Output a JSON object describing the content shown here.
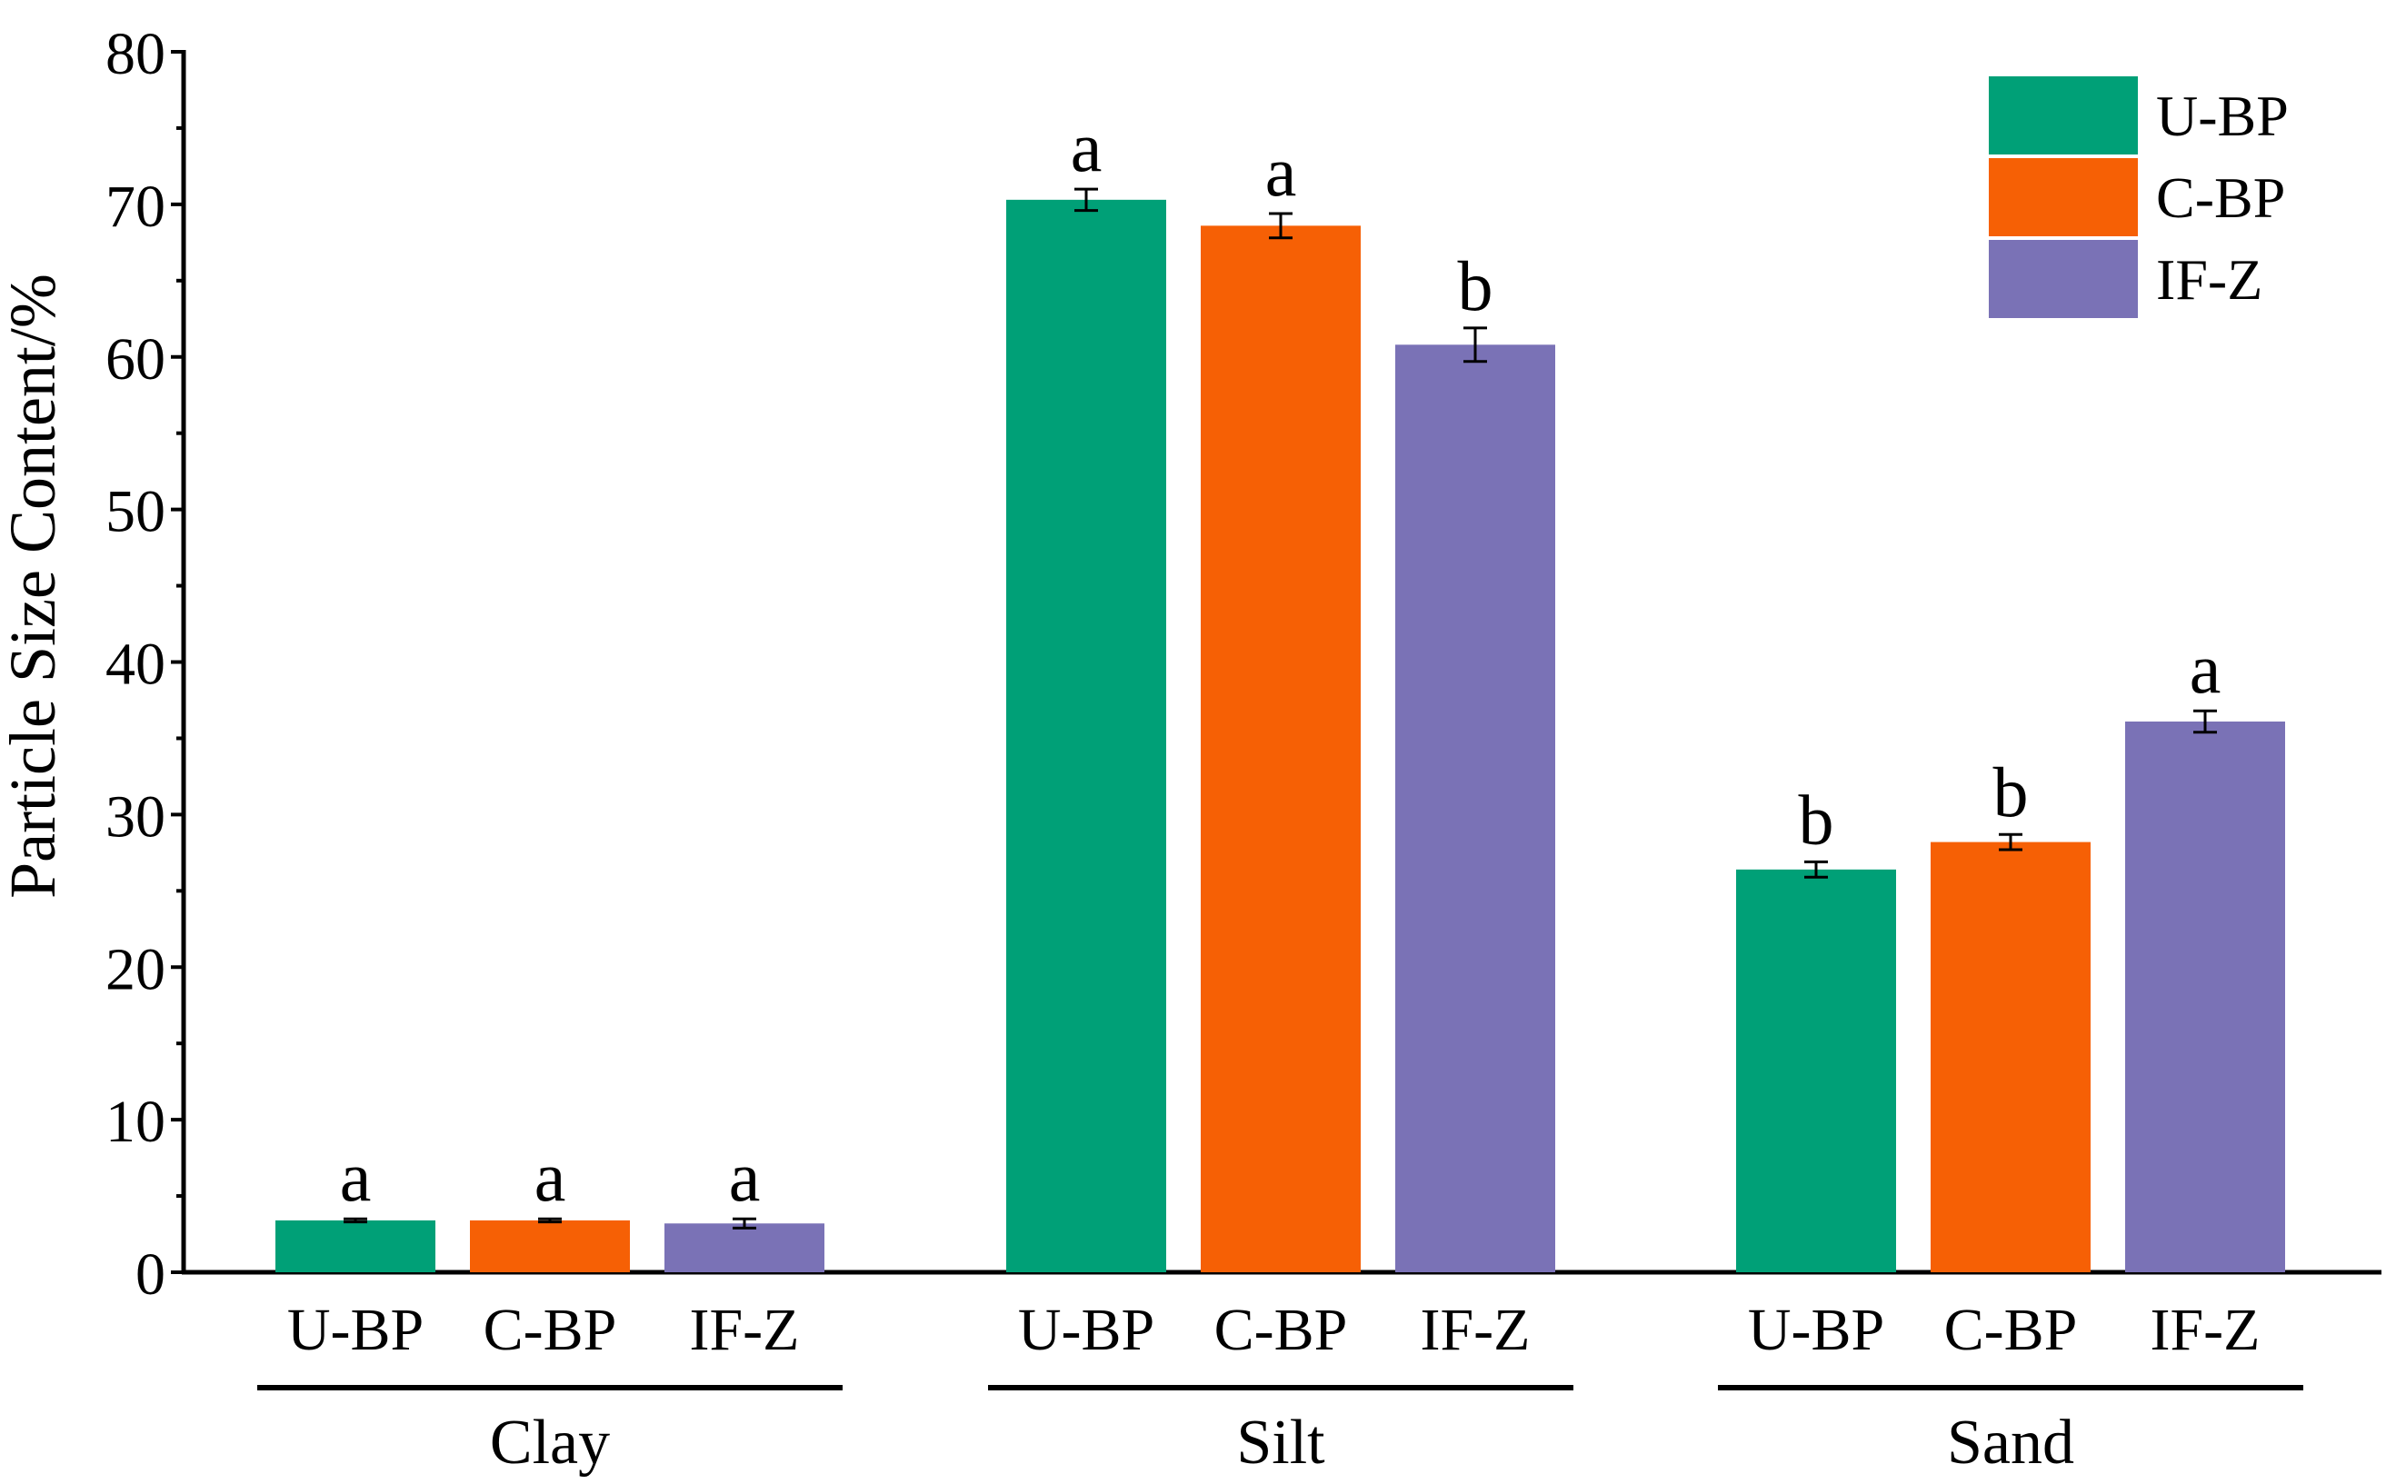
{
  "chart_data": {
    "type": "bar",
    "ylabel": "Particle Size Content/%",
    "ylim": [
      0,
      80
    ],
    "y_ticks": [
      "0",
      "10",
      "20",
      "30",
      "40",
      "50",
      "60",
      "70",
      "80"
    ],
    "groups": [
      {
        "name": "Clay",
        "categories": [
          "U-BP",
          "C-BP",
          "IF-Z"
        ],
        "values": [
          3.4,
          3.4,
          3.2
        ],
        "errors": [
          0.1,
          0.1,
          0.3
        ],
        "letters": [
          "a",
          "a",
          "a"
        ]
      },
      {
        "name": "Silt",
        "categories": [
          "U-BP",
          "C-BP",
          "IF-Z"
        ],
        "values": [
          70.3,
          68.6,
          60.8
        ],
        "errors": [
          0.7,
          0.8,
          1.1
        ],
        "letters": [
          "a",
          "a",
          "b"
        ]
      },
      {
        "name": "Sand",
        "categories": [
          "U-BP",
          "C-BP",
          "IF-Z"
        ],
        "values": [
          26.4,
          28.2,
          36.1
        ],
        "errors": [
          0.5,
          0.5,
          0.7
        ],
        "letters": [
          "b",
          "b",
          "a"
        ]
      }
    ],
    "legend": {
      "position": "top-right",
      "entries": [
        {
          "label": "U-BP",
          "color": "#00a077"
        },
        {
          "label": "C-BP",
          "color": "#f66005"
        },
        {
          "label": "IF-Z",
          "color": "#7a72b6"
        }
      ]
    }
  }
}
